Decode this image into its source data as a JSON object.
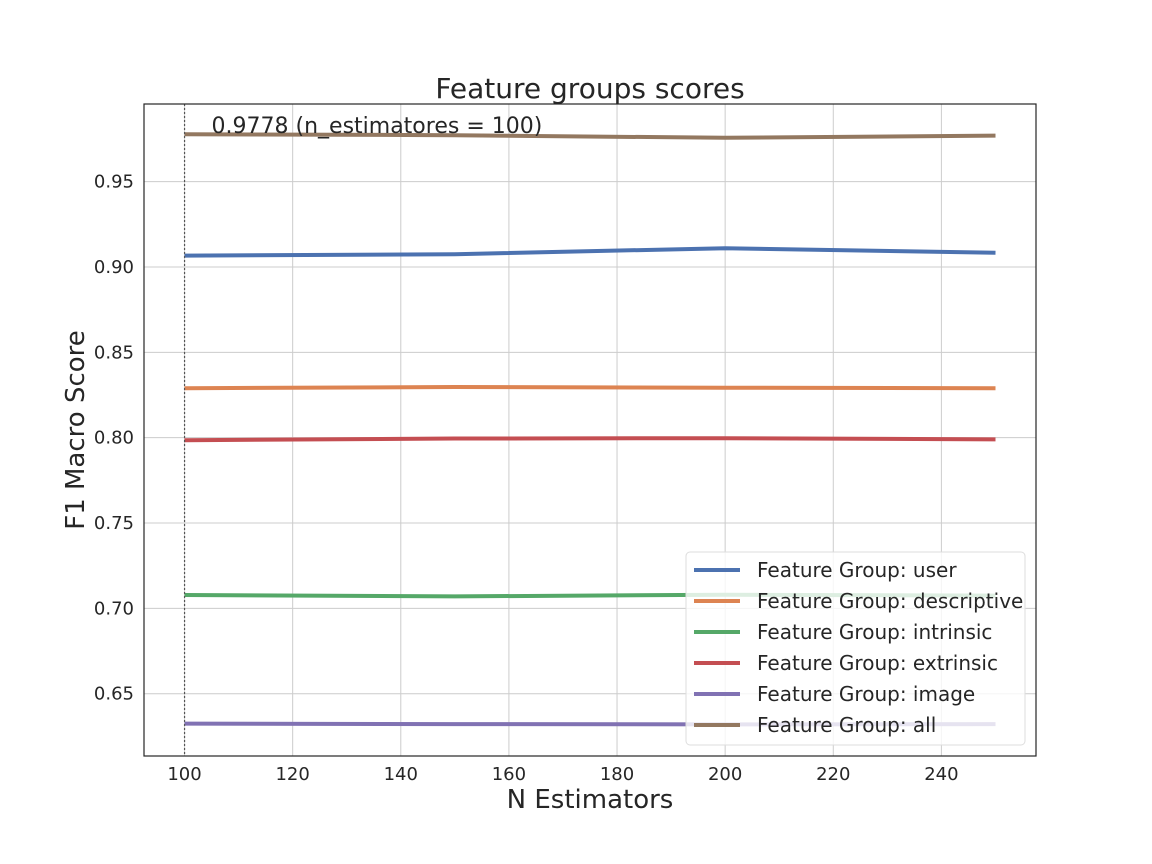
{
  "chart_data": {
    "type": "line",
    "title": "Feature groups scores",
    "xlabel": "N Estimators",
    "ylabel": "F1 Macro Score",
    "x": [
      100,
      150,
      200,
      250
    ],
    "xlim": [
      92.5,
      257.5
    ],
    "ylim": [
      0.6135,
      0.9955
    ],
    "xticks": [
      "100",
      "120",
      "140",
      "160",
      "180",
      "200",
      "220",
      "240"
    ],
    "xtick_values": [
      100,
      120,
      140,
      160,
      180,
      200,
      220,
      240
    ],
    "yticks": [
      "0.65",
      "0.70",
      "0.75",
      "0.80",
      "0.85",
      "0.90",
      "0.95"
    ],
    "ytick_values": [
      0.65,
      0.7,
      0.75,
      0.8,
      0.85,
      0.9,
      0.95
    ],
    "grid": true,
    "legend_position": "lower-right",
    "series": [
      {
        "name": "Feature Group: user",
        "color": "#4c72b0",
        "values": [
          0.9067,
          0.9075,
          0.911,
          0.9083
        ]
      },
      {
        "name": "Feature Group: descriptive",
        "color": "#dd8452",
        "values": [
          0.829,
          0.8297,
          0.8293,
          0.829
        ]
      },
      {
        "name": "Feature Group: intrinsic",
        "color": "#55a868",
        "values": [
          0.7078,
          0.707,
          0.708,
          0.7075
        ]
      },
      {
        "name": "Feature Group: extrinsic",
        "color": "#c44e52",
        "values": [
          0.7985,
          0.7995,
          0.7997,
          0.799
        ]
      },
      {
        "name": "Feature Group: image",
        "color": "#8172b3",
        "values": [
          0.6325,
          0.6322,
          0.632,
          0.6322
        ]
      },
      {
        "name": "Feature Group: all",
        "color": "#937860",
        "values": [
          0.9778,
          0.9772,
          0.9757,
          0.977
        ]
      }
    ],
    "vline_x": 100,
    "annotation": {
      "text": "0.9778 (n_estimatores = 100)",
      "x": 100,
      "y": 0.9778
    }
  }
}
